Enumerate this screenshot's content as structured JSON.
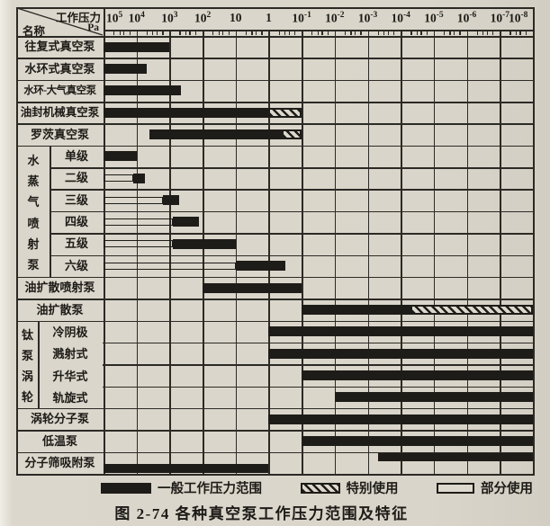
{
  "figure": {
    "caption": "图 2-74  各种真空泵工作压力范围及特征",
    "corner": {
      "top_label": "工作压力",
      "unit": "Pa",
      "bottom_label": "名称"
    },
    "legend": [
      {
        "kind": "general",
        "label": "一般工作压力范围"
      },
      {
        "kind": "special",
        "label": "特别使用"
      },
      {
        "kind": "partial",
        "label": "部分使用"
      }
    ]
  },
  "chart_data": {
    "type": "bar",
    "subtype": "horizontal-range-gantt",
    "title": "各种真空泵工作压力范围及特征",
    "x_axis": {
      "label": "工作压力",
      "unit": "Pa",
      "scale": "log10",
      "range_log10": [
        5,
        -8
      ],
      "ticks": [
        "10^5",
        "10^4",
        "10^3",
        "10^2",
        "10",
        "1",
        "10^-1",
        "10^-2",
        "10^-3",
        "10^-4",
        "10^-5",
        "10^-6",
        "10^-7",
        "10^-8"
      ],
      "grid": true
    },
    "bar_kinds": {
      "general": "一般工作压力范围",
      "special": "特别使用",
      "partial": "部分使用"
    },
    "groups": [
      {
        "id": "steam",
        "label": "水蒸气喷射泵",
        "row_start": 5,
        "row_end": 10,
        "strip_width": 37
      },
      {
        "id": "titanium",
        "label": "钛泵涡轮",
        "row_start": 13,
        "row_end": 16,
        "strip_width": 24,
        "cell_lines": [
          "冷阴极",
          "溅射式",
          "升华式",
          "轨旋式"
        ]
      }
    ],
    "rows": [
      {
        "name": "往复式真空泵",
        "lines": [
          [
            {
              "kind": "general",
              "from_log": 5,
              "to_log": 3
            }
          ]
        ]
      },
      {
        "name": "水环式真空泵",
        "lines": [
          [
            {
              "kind": "general",
              "from_log": 5,
              "to_log": 3.7
            }
          ]
        ]
      },
      {
        "name": "水环-大气真空泵",
        "lines": [
          [
            {
              "kind": "general",
              "from_log": 5,
              "to_log": 2.65
            }
          ]
        ]
      },
      {
        "name": "油封机械真空泵",
        "lines": [
          [
            {
              "kind": "general",
              "from_log": 5,
              "to_log": 0
            },
            {
              "kind": "special",
              "from_log": 0,
              "to_log": -1
            }
          ]
        ]
      },
      {
        "name": "罗茨真空泵",
        "lines": [
          [
            {
              "kind": "general",
              "from_log": 3.6,
              "to_log": -0.4
            },
            {
              "kind": "special",
              "from_log": -0.4,
              "to_log": -1
            }
          ]
        ]
      },
      {
        "name": "单级",
        "group": "steam",
        "lines": [
          [
            {
              "kind": "general",
              "from_log": 5,
              "to_log": 4
            }
          ]
        ]
      },
      {
        "name": "二级",
        "group": "steam",
        "lines": [
          [
            {
              "kind": "partial",
              "from_log": 5,
              "to_log": 4.1
            },
            {
              "kind": "general",
              "from_log": 4.1,
              "to_log": 3.75
            }
          ]
        ]
      },
      {
        "name": "三级",
        "group": "steam",
        "lines": [
          [
            {
              "kind": "partial",
              "from_log": 5,
              "to_log": 3.2
            },
            {
              "kind": "general",
              "from_log": 3.2,
              "to_log": 2.7
            }
          ]
        ]
      },
      {
        "name": "四级",
        "group": "steam",
        "lines": [
          [
            {
              "kind": "partial",
              "from_log": 5,
              "to_log": 2.9
            },
            {
              "kind": "general",
              "from_log": 2.9,
              "to_log": 2.1
            }
          ]
        ]
      },
      {
        "name": "五级",
        "group": "steam",
        "lines": [
          [
            {
              "kind": "partial",
              "from_log": 5,
              "to_log": 2.9
            },
            {
              "kind": "general",
              "from_log": 2.9,
              "to_log": 1
            }
          ]
        ]
      },
      {
        "name": "六级",
        "group": "steam",
        "lines": [
          [
            {
              "kind": "partial",
              "from_log": 5,
              "to_log": 1
            },
            {
              "kind": "general",
              "from_log": 1,
              "to_log": -0.5
            }
          ]
        ]
      },
      {
        "name": "油扩散喷射泵",
        "lines": [
          [
            {
              "kind": "general",
              "from_log": 2,
              "to_log": -1
            }
          ]
        ]
      },
      {
        "name": "油扩散泵",
        "lines": [
          [
            {
              "kind": "general",
              "from_log": -1,
              "to_log": -4.3
            },
            {
              "kind": "special",
              "from_log": -4.3,
              "to_log": -8
            }
          ]
        ]
      },
      {
        "name": "冷阴极溅射式",
        "group": "titanium",
        "lines": [
          [
            {
              "kind": "general",
              "from_log": 0,
              "to_log": -8
            }
          ]
        ]
      },
      {
        "name": "冷阴极溅射式",
        "group": "titanium",
        "lines": [
          [
            {
              "kind": "general",
              "from_log": 0,
              "to_log": -8
            }
          ]
        ]
      },
      {
        "name": "升华式",
        "group": "titanium",
        "lines": [
          [
            {
              "kind": "general",
              "from_log": -1,
              "to_log": -8
            }
          ]
        ]
      },
      {
        "name": "轨旋式",
        "group": "titanium",
        "lines": [
          [
            {
              "kind": "general",
              "from_log": -2,
              "to_log": -8
            }
          ]
        ]
      },
      {
        "name": "涡轮分子泵",
        "lines": [
          [
            {
              "kind": "general",
              "from_log": 0,
              "to_log": -8
            }
          ]
        ]
      },
      {
        "name": "低温泵",
        "lines": [
          [
            {
              "kind": "general",
              "from_log": -1,
              "to_log": -8
            }
          ]
        ]
      },
      {
        "name": "分子筛吸附泵",
        "lines": [
          [
            {
              "kind": "general",
              "from_log": -3.3,
              "to_log": -8
            }
          ],
          [
            {
              "kind": "general",
              "from_log": 5,
              "to_log": 0
            }
          ]
        ]
      }
    ]
  }
}
